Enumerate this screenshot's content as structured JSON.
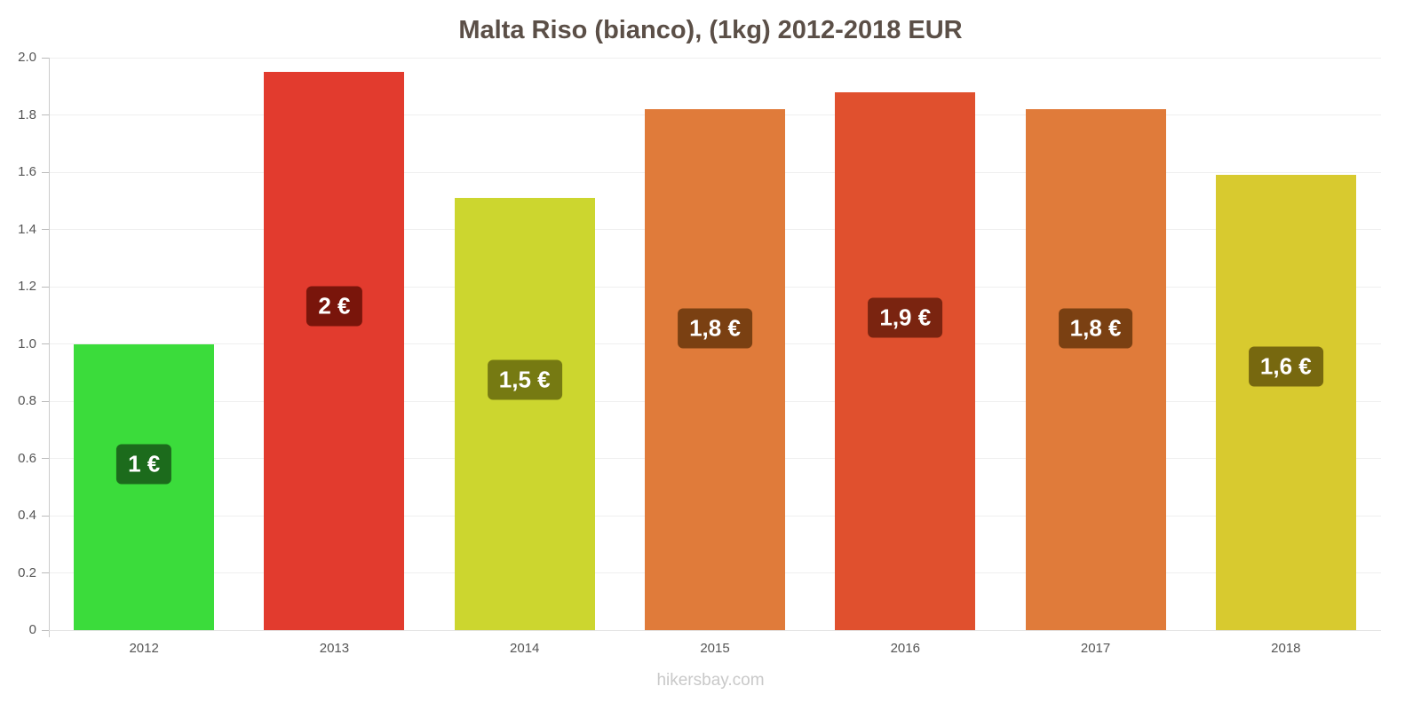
{
  "title": "Malta Riso (bianco), (1kg) 2012-2018 EUR",
  "footer": "hikersbay.com",
  "chart_data": {
    "type": "bar",
    "title": "Malta Riso (bianco), (1kg) 2012-2018 EUR",
    "xlabel": "",
    "ylabel": "",
    "ylim": [
      0,
      2.0
    ],
    "grid": true,
    "legend": "none",
    "categories": [
      "2012",
      "2013",
      "2014",
      "2015",
      "2016",
      "2017",
      "2018"
    ],
    "values": [
      1.0,
      1.95,
      1.51,
      1.82,
      1.88,
      1.82,
      1.59
    ],
    "value_labels": [
      "1 €",
      "2 €",
      "1,5 €",
      "1,8 €",
      "1,9 €",
      "1,8 €",
      "1,6 €"
    ],
    "bar_colors": [
      "#3bdc3b",
      "#e23b2e",
      "#ccd62f",
      "#e07b3a",
      "#e0502e",
      "#e07b3a",
      "#d8ca2f"
    ],
    "label_bg_colors": [
      "#1c6b1c",
      "#79150b",
      "#767a12",
      "#7a4012",
      "#7a2410",
      "#7a4012",
      "#77680f"
    ],
    "ytick_values": [
      0,
      0.2,
      0.4,
      0.6,
      0.8,
      1.0,
      1.2,
      1.4,
      1.6,
      1.8,
      2.0
    ],
    "ytick_labels": [
      "0",
      "0.2",
      "0.4",
      "0.6",
      "0.8",
      "1.0",
      "1.2",
      "1.4",
      "1.6",
      "1.8",
      "2.0"
    ]
  }
}
